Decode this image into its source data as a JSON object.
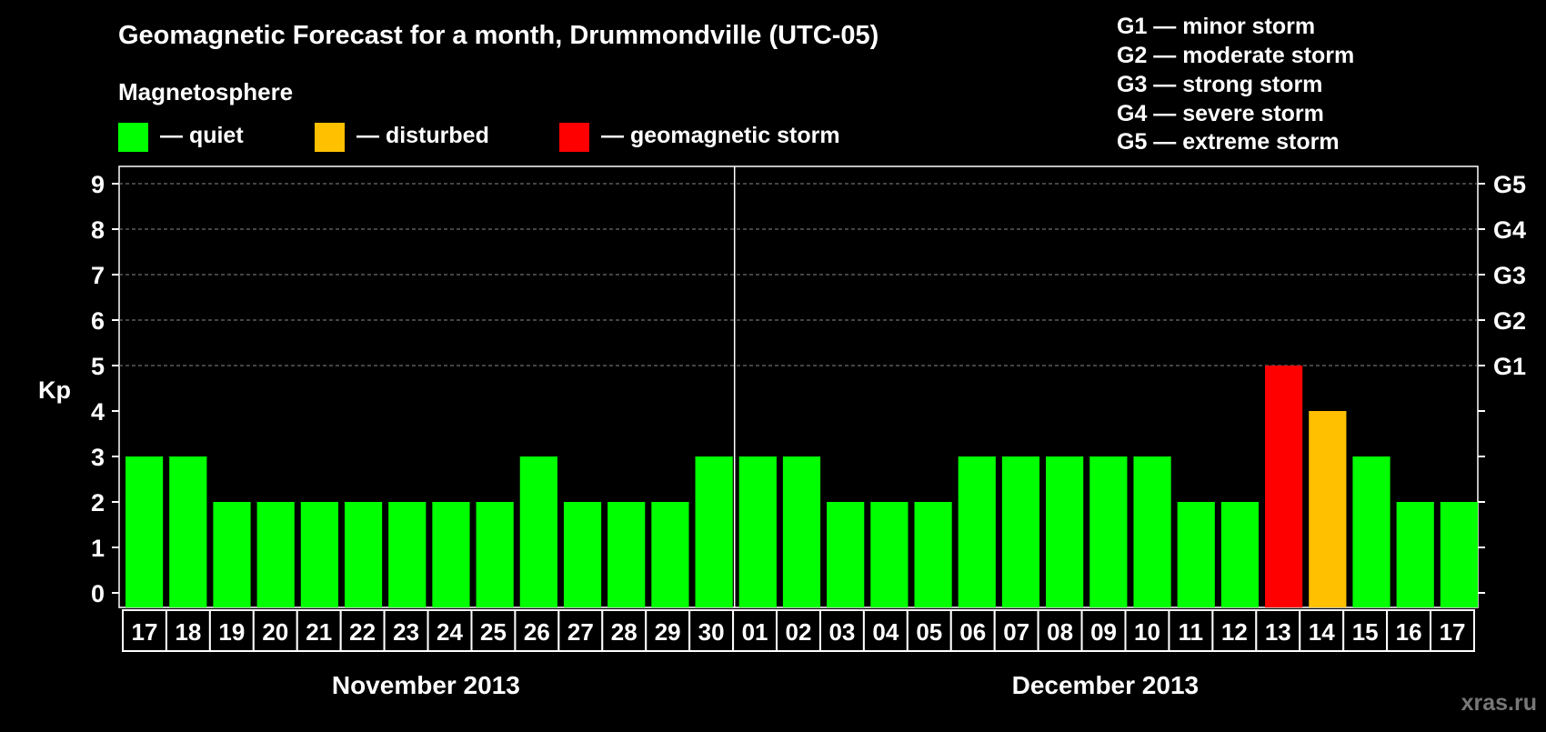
{
  "header": {
    "title": "Geomagnetic Forecast for a month, Drummondville (UTC-05)",
    "subtitle": "Magnetosphere"
  },
  "legend": [
    {
      "label": "— quiet",
      "color": "#00ff00"
    },
    {
      "label": "— disturbed",
      "color": "#ffc000"
    },
    {
      "label": "— geomagnetic storm",
      "color": "#ff0000"
    }
  ],
  "storm_scale": [
    "G1 — minor storm",
    "G2 — moderate storm",
    "G3 — strong storm",
    "G4 — severe storm",
    "G5 — extreme storm"
  ],
  "watermark": "xras.ru",
  "chart_data": {
    "type": "bar",
    "ylabel": "Kp",
    "ylim": [
      0,
      9
    ],
    "yticks": [
      "0",
      "1",
      "2",
      "3",
      "4",
      "5",
      "6",
      "7",
      "8",
      "9"
    ],
    "right_ticks": [
      {
        "value": 5,
        "label": "G1"
      },
      {
        "value": 6,
        "label": "G2"
      },
      {
        "value": 7,
        "label": "G3"
      },
      {
        "value": 8,
        "label": "G4"
      },
      {
        "value": 9,
        "label": "G5"
      }
    ],
    "grid": "dashed horizontal at 5-9",
    "categories": [
      "17",
      "18",
      "19",
      "20",
      "21",
      "22",
      "23",
      "24",
      "25",
      "26",
      "27",
      "28",
      "29",
      "30",
      "01",
      "02",
      "03",
      "04",
      "05",
      "06",
      "07",
      "08",
      "09",
      "10",
      "11",
      "12",
      "13",
      "14",
      "15",
      "16",
      "17"
    ],
    "values": [
      3,
      3,
      2,
      2,
      2,
      2,
      2,
      2,
      2,
      3,
      2,
      2,
      2,
      3,
      3,
      3,
      2,
      2,
      2,
      3,
      3,
      3,
      3,
      3,
      2,
      2,
      5,
      4,
      3,
      2,
      2
    ],
    "months": [
      {
        "label": "November 2013",
        "start": 0,
        "end": 13
      },
      {
        "label": "December 2013",
        "start": 14,
        "end": 30
      }
    ],
    "colors": {
      "quiet": "#00ff00",
      "disturbed": "#ffc000",
      "storm": "#ff0000"
    }
  }
}
